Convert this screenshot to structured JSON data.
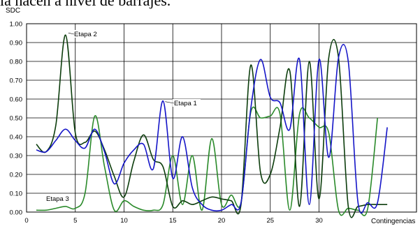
{
  "cropped_text": "la hacen a nivel de barrajes.",
  "chart_data": {
    "type": "line",
    "title": "",
    "ylabel": "SDC",
    "xlabel": "Contingencias",
    "xlim": [
      0,
      40
    ],
    "ylim": [
      0,
      1.0
    ],
    "x_ticks": [
      "0",
      "5",
      "10",
      "15",
      "20",
      "25",
      "30"
    ],
    "y_ticks": [
      "0.00",
      "0.10",
      "0.20",
      "0.30",
      "0.40",
      "0.50",
      "0.60",
      "0.70",
      "0.80",
      "0.90",
      "1.00"
    ],
    "grid": true,
    "legend": "none",
    "series": [
      {
        "name": "Etapa 1",
        "color": "#1515c8",
        "x": [
          1,
          2,
          3,
          4,
          5,
          6,
          7,
          8,
          9,
          10,
          11,
          12,
          13,
          14,
          15,
          16,
          17,
          18,
          19,
          20,
          21,
          22,
          23,
          24,
          25,
          26,
          27,
          28,
          29,
          30,
          31,
          32,
          33,
          34,
          35,
          36,
          37
        ],
        "values": [
          0.33,
          0.32,
          0.38,
          0.44,
          0.38,
          0.34,
          0.44,
          0.32,
          0.15,
          0.26,
          0.33,
          0.36,
          0.23,
          0.59,
          0.18,
          0.4,
          0.13,
          0.04,
          0.01,
          0.01,
          0.04,
          0.05,
          0.55,
          0.81,
          0.61,
          0.58,
          0.44,
          0.81,
          0.04,
          0.81,
          0.29,
          0.82,
          0.8,
          0.05,
          0.05,
          0.05,
          0.45
        ]
      },
      {
        "name": "Etapa 2",
        "color": "#0c3d0c",
        "x": [
          1,
          2,
          3,
          4,
          5,
          6,
          7,
          8,
          9,
          10,
          11,
          12,
          13,
          14,
          15,
          16,
          17,
          18,
          19,
          20,
          21,
          22,
          23,
          24,
          25,
          26,
          27,
          28,
          29,
          30,
          31,
          32,
          33,
          34,
          35,
          36,
          37
        ],
        "values": [
          0.36,
          0.32,
          0.46,
          0.94,
          0.42,
          0.37,
          0.43,
          0.33,
          0.19,
          0.08,
          0.27,
          0.41,
          0.28,
          0.24,
          0.03,
          0.06,
          0.04,
          0.06,
          0.08,
          0.07,
          0.06,
          0.04,
          0.78,
          0.21,
          0.2,
          0.45,
          0.75,
          0.03,
          0.8,
          0.07,
          0.82,
          0.82,
          0.03,
          0.03,
          0.04,
          0.04,
          0.04
        ]
      },
      {
        "name": "Etapa 3",
        "color": "#2a8a2a",
        "x": [
          1,
          2,
          3,
          4,
          5,
          6,
          7,
          8,
          9,
          10,
          11,
          12,
          13,
          14,
          15,
          16,
          17,
          18,
          19,
          20,
          21,
          22,
          23,
          24,
          25,
          26,
          27,
          28,
          29,
          30,
          31,
          32,
          33,
          34,
          35,
          36
        ],
        "values": [
          0.01,
          0.01,
          0.02,
          0.03,
          0.02,
          0.1,
          0.51,
          0.24,
          0.01,
          0.06,
          0.03,
          0.01,
          0.01,
          0.04,
          0.3,
          0.04,
          0.3,
          0.01,
          0.39,
          0.04,
          0.09,
          0.05,
          0.53,
          0.5,
          0.51,
          0.52,
          0.01,
          0.52,
          0.5,
          0.45,
          0.42,
          0.01,
          0.02,
          0.01,
          0.02,
          0.5
        ]
      }
    ],
    "annotations": [
      {
        "text": "Etapa 2",
        "series": "Etapa 2"
      },
      {
        "text": "Etapa 1",
        "series": "Etapa 1"
      },
      {
        "text": "Etapa 3",
        "series": "Etapa 3"
      }
    ]
  }
}
